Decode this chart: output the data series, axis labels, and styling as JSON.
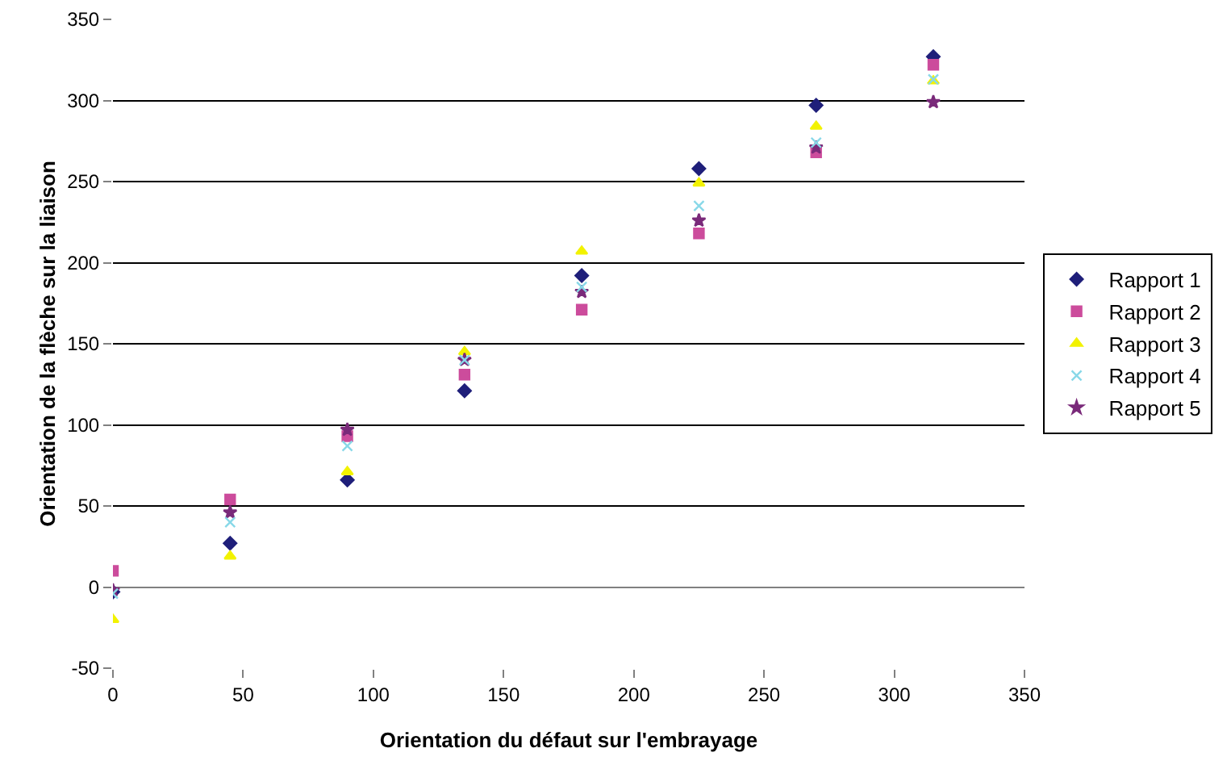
{
  "chart_data": {
    "type": "scatter",
    "xlabel": "Orientation du défaut sur l'embrayage",
    "ylabel": "Orientation de la flèche sur la liaison",
    "x": [
      0,
      45,
      90,
      135,
      180,
      225,
      270,
      315
    ],
    "series": [
      {
        "name": "Rapport 1",
        "color": "#1f1f7a",
        "marker": "diamond",
        "values": [
          -3,
          27,
          66,
          121,
          192,
          258,
          297,
          327
        ]
      },
      {
        "name": "Rapport 2",
        "color": "#cc4c9c",
        "marker": "square",
        "values": [
          10,
          54,
          93,
          131,
          171,
          218,
          268,
          322
        ]
      },
      {
        "name": "Rapport 3",
        "color": "#f2f200",
        "marker": "triangle",
        "values": [
          -20,
          19,
          71,
          145,
          207,
          249,
          284,
          312
        ]
      },
      {
        "name": "Rapport 4",
        "color": "#88d8e8",
        "marker": "cross",
        "values": [
          -4,
          40,
          87,
          140,
          185,
          235,
          274,
          313
        ]
      },
      {
        "name": "Rapport 5",
        "color": "#7a2a7a",
        "marker": "star",
        "values": [
          -2,
          46,
          97,
          140,
          182,
          226,
          271,
          299
        ]
      }
    ],
    "xlim": [
      0,
      350
    ],
    "xticks": [
      0,
      50,
      100,
      150,
      200,
      250,
      300,
      350
    ],
    "ylim": [
      -50,
      350
    ],
    "yticks": [
      -50,
      0,
      50,
      100,
      150,
      200,
      250,
      300,
      350
    ],
    "grid": "y",
    "legend": "right"
  }
}
